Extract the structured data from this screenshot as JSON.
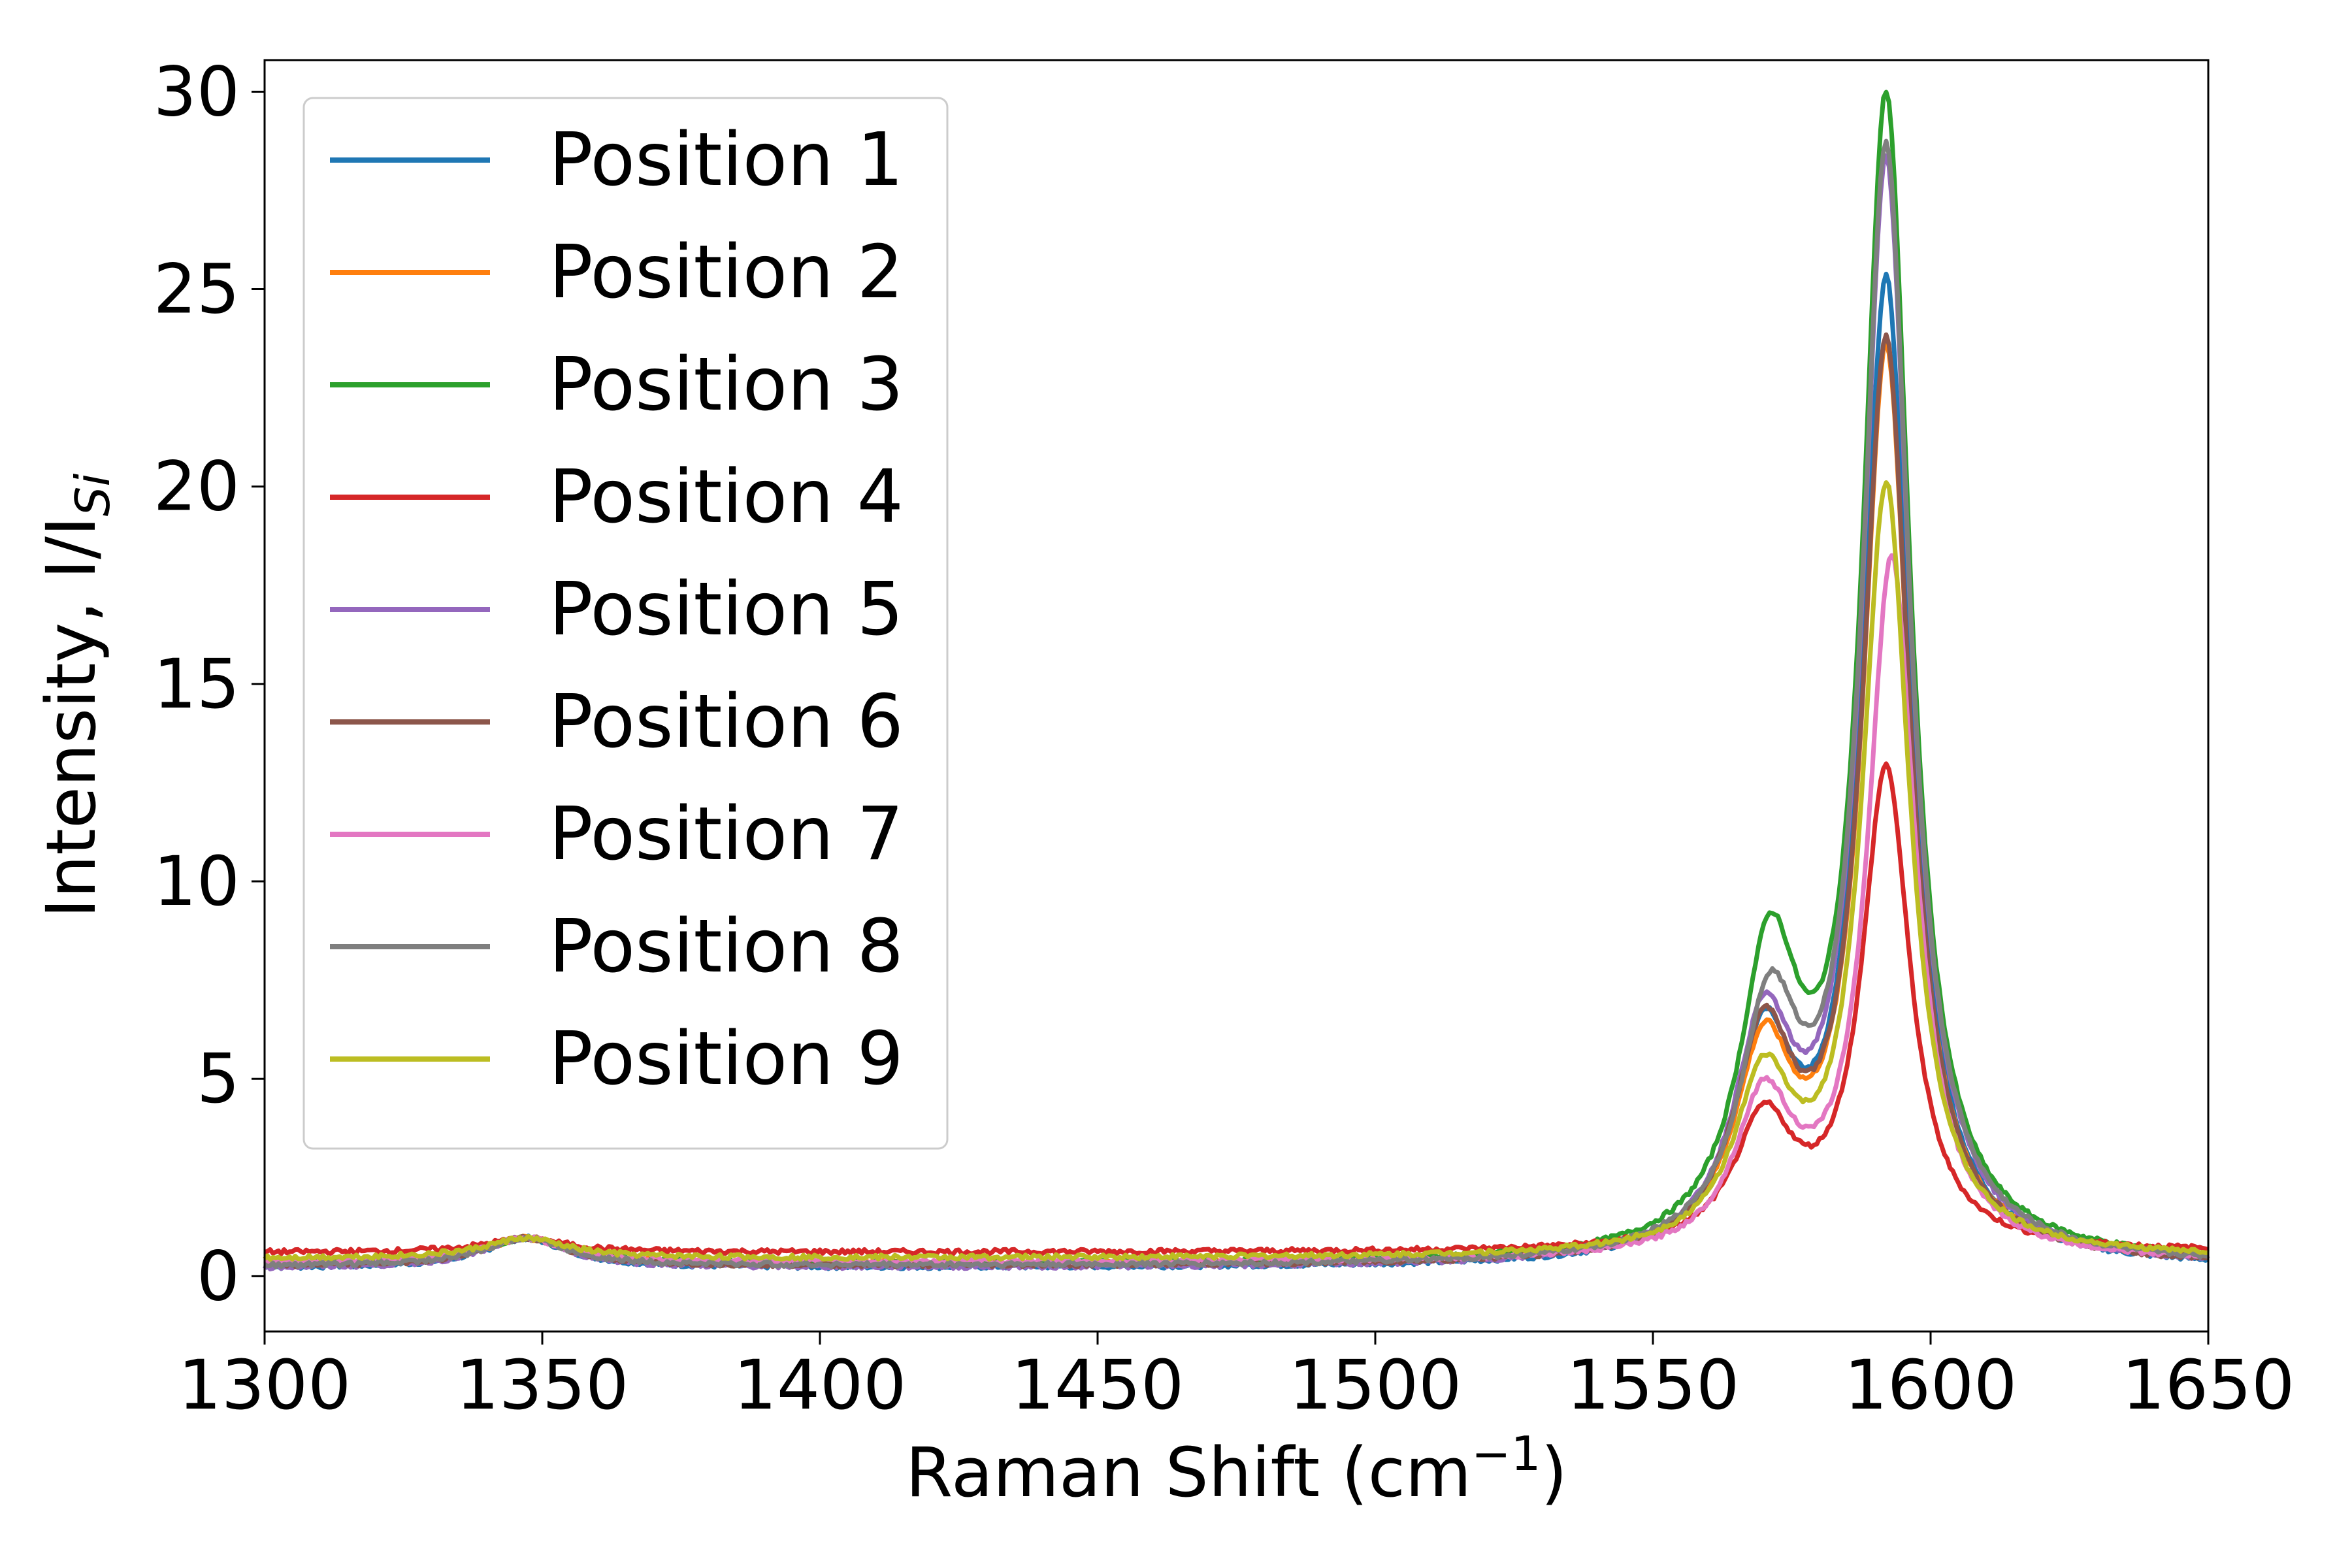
{
  "chart_data": {
    "type": "line",
    "title": "",
    "xlabel": {
      "main": "Raman Shift (cm",
      "sup": "−1",
      "tail": ")"
    },
    "ylabel": {
      "main": "Intensity, I/I",
      "sub": "Si"
    },
    "xlim": [
      1300,
      1650
    ],
    "ylim": [
      -1.4,
      30.8
    ],
    "x_ticks": [
      1300,
      1350,
      1400,
      1450,
      1500,
      1550,
      1600,
      1650
    ],
    "y_ticks": [
      0,
      5,
      10,
      15,
      20,
      25,
      30
    ],
    "legend_position": "upper-left",
    "grid": false,
    "peak_params_note_excluded": true,
    "series": [
      {
        "name": "Position 1",
        "color": "#1f77b4",
        "peak_x": 1592,
        "peak_y": 24.9,
        "shoulder_x": 1570,
        "shoulder_y": 5.4,
        "d_y": 0.95,
        "baseline": 0.2
      },
      {
        "name": "Position 2",
        "color": "#ff7f0e",
        "peak_x": 1592,
        "peak_y": 23.2,
        "shoulder_x": 1570,
        "shoulder_y": 5.1,
        "d_y": 0.95,
        "baseline": 0.3
      },
      {
        "name": "Position 3",
        "color": "#2ca02c",
        "peak_x": 1592,
        "peak_y": 29.4,
        "shoulder_x": 1571,
        "shoulder_y": 7.4,
        "d_y": 0.95,
        "baseline": 0.3
      },
      {
        "name": "Position 4",
        "color": "#d62728",
        "peak_x": 1592,
        "peak_y": 12.7,
        "shoulder_x": 1570,
        "shoulder_y": 3.5,
        "d_y": 0.95,
        "baseline": 0.6
      },
      {
        "name": "Position 5",
        "color": "#9467bd",
        "peak_x": 1592,
        "peak_y": 27.9,
        "shoulder_x": 1570,
        "shoulder_y": 5.6,
        "d_y": 0.95,
        "baseline": 0.2
      },
      {
        "name": "Position 6",
        "color": "#8c564b",
        "peak_x": 1592,
        "peak_y": 23.4,
        "shoulder_x": 1570,
        "shoulder_y": 5.5,
        "d_y": 0.95,
        "baseline": 0.25
      },
      {
        "name": "Position 7",
        "color": "#e377c2",
        "peak_x": 1593,
        "peak_y": 18.0,
        "shoulder_x": 1570,
        "shoulder_y": 4.0,
        "d_y": 0.95,
        "baseline": 0.35
      },
      {
        "name": "Position 8",
        "color": "#7f7f7f",
        "peak_x": 1592,
        "peak_y": 28.2,
        "shoulder_x": 1571,
        "shoulder_y": 6.0,
        "d_y": 0.95,
        "baseline": 0.25
      },
      {
        "name": "Position 9",
        "color": "#bcbd22",
        "peak_x": 1592,
        "peak_y": 19.8,
        "shoulder_x": 1570,
        "shoulder_y": 4.4,
        "d_y": 0.95,
        "baseline": 0.45
      }
    ]
  }
}
